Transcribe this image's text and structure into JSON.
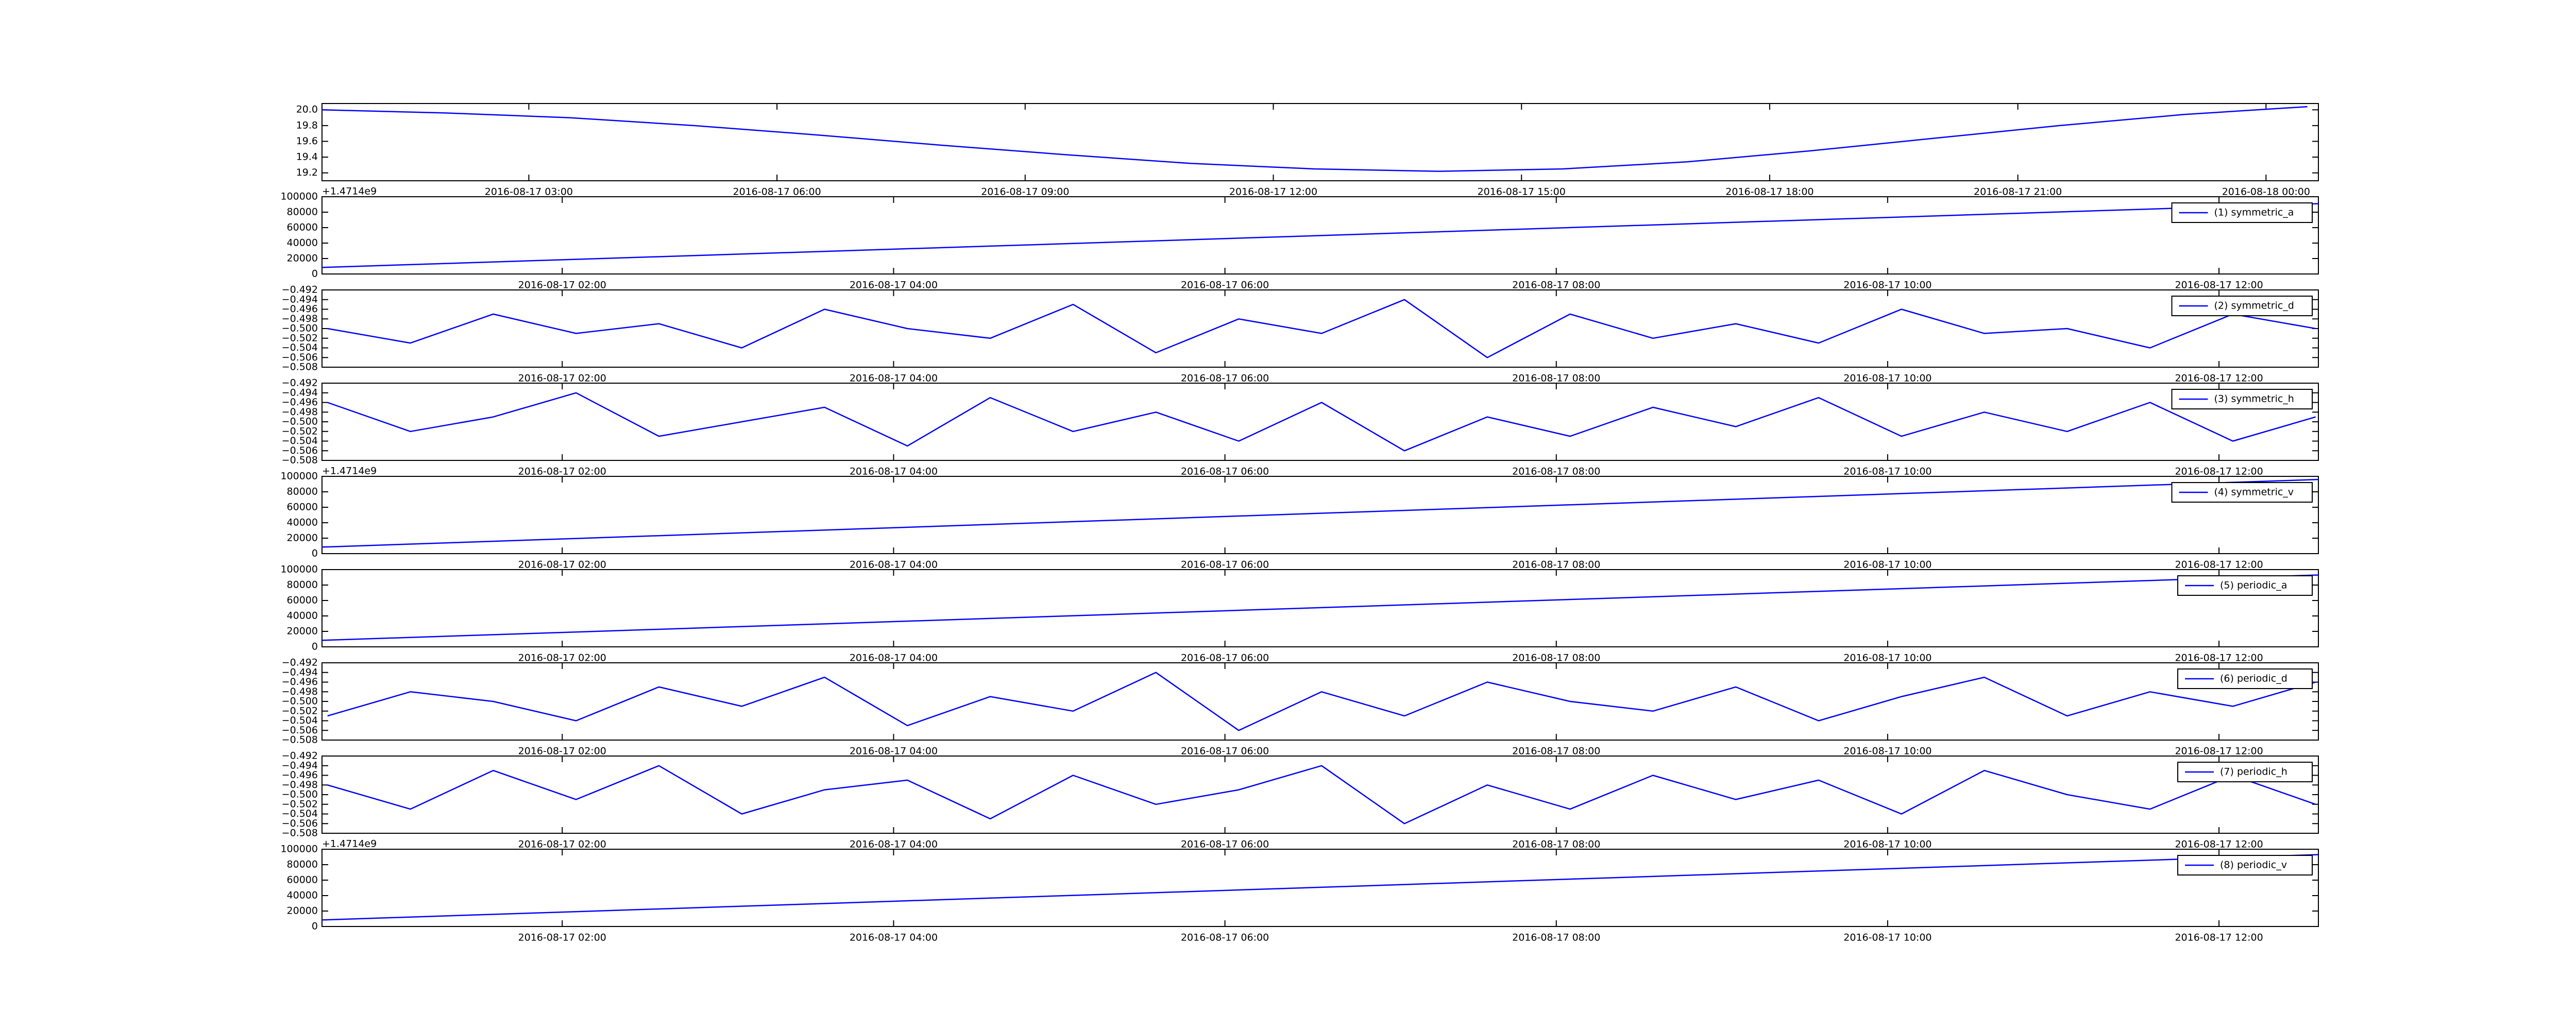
{
  "chart_data": [
    {
      "type": "line",
      "xlim": [
        "2016-08-17 00:30",
        "2016-08-18 00:38"
      ],
      "ylim": [
        19.1,
        20.08
      ],
      "xticks": [
        "2016-08-17 03:00",
        "2016-08-17 06:00",
        "2016-08-17 09:00",
        "2016-08-17 12:00",
        "2016-08-17 15:00",
        "2016-08-17 18:00",
        "2016-08-17 21:00",
        "2016-08-18 00:00"
      ],
      "yticks": [
        19.2,
        19.4,
        19.6,
        19.8,
        {
          "value": 20.0,
          "label": "20.0"
        }
      ],
      "grid": false,
      "series": [
        {
          "color": "#0000ff",
          "x": [
            "2016-08-17 00:30",
            "2016-08-17 02:00",
            "2016-08-17 03:30",
            "2016-08-17 05:00",
            "2016-08-17 06:30",
            "2016-08-17 08:00",
            "2016-08-17 09:30",
            "2016-08-17 11:00",
            "2016-08-17 12:30",
            "2016-08-17 14:00",
            "2016-08-17 15:30",
            "2016-08-17 17:00",
            "2016-08-17 18:30",
            "2016-08-17 20:00",
            "2016-08-17 21:30",
            "2016-08-17 23:00",
            "2016-08-18 00:30"
          ],
          "values": [
            20.0,
            19.96,
            19.9,
            19.8,
            19.68,
            19.55,
            19.43,
            19.32,
            19.25,
            19.22,
            19.25,
            19.34,
            19.48,
            19.64,
            19.8,
            19.94,
            20.04
          ]
        }
      ]
    },
    {
      "type": "line",
      "xlim": [
        "2016-08-17 00:33",
        "2016-08-17 12:36"
      ],
      "ylim": [
        0,
        100000
      ],
      "y_offset": "+1.4714e9",
      "legend": "upper right",
      "xticks": [
        "2016-08-17 02:00",
        "2016-08-17 04:00",
        "2016-08-17 06:00",
        "2016-08-17 08:00",
        "2016-08-17 10:00",
        "2016-08-17 12:00"
      ],
      "yticks": [
        0,
        20000,
        40000,
        60000,
        80000,
        100000
      ],
      "grid": false,
      "series": [
        {
          "name": "(1) symmetric_a",
          "color": "#0000ff",
          "x": [
            "2016-08-17 00:33",
            "2016-08-17 12:36"
          ],
          "values": [
            8500,
            91000
          ]
        }
      ]
    },
    {
      "type": "line",
      "xlim": [
        "2016-08-17 00:33",
        "2016-08-17 12:36"
      ],
      "ylim": [
        -0.508,
        -0.492
      ],
      "legend": "upper right",
      "xticks": [
        "2016-08-17 02:00",
        "2016-08-17 04:00",
        "2016-08-17 06:00",
        "2016-08-17 08:00",
        "2016-08-17 10:00",
        "2016-08-17 12:00"
      ],
      "yticks": [
        {
          "value": -0.508,
          "label": "−0.508"
        },
        {
          "value": -0.506,
          "label": "−0.506"
        },
        {
          "value": -0.504,
          "label": "−0.504"
        },
        {
          "value": -0.502,
          "label": "−0.502"
        },
        {
          "value": -0.5,
          "label": "−0.500"
        },
        {
          "value": -0.498,
          "label": "−0.498"
        },
        {
          "value": -0.496,
          "label": "−0.496"
        },
        {
          "value": -0.494,
          "label": "−0.494"
        },
        {
          "value": -0.492,
          "label": "−0.492"
        }
      ],
      "grid": false,
      "series": [
        {
          "name": "(2) symmetric_d",
          "color": "#0000ff",
          "x": [
            "2016-08-17 00:35",
            "2016-08-17 01:05",
            "2016-08-17 01:35",
            "2016-08-17 02:05",
            "2016-08-17 02:35",
            "2016-08-17 03:05",
            "2016-08-17 03:35",
            "2016-08-17 04:05",
            "2016-08-17 04:35",
            "2016-08-17 05:05",
            "2016-08-17 05:35",
            "2016-08-17 06:05",
            "2016-08-17 06:35",
            "2016-08-17 07:05",
            "2016-08-17 07:35",
            "2016-08-17 08:05",
            "2016-08-17 08:35",
            "2016-08-17 09:05",
            "2016-08-17 09:35",
            "2016-08-17 10:05",
            "2016-08-17 10:35",
            "2016-08-17 11:05",
            "2016-08-17 11:35",
            "2016-08-17 12:05",
            "2016-08-17 12:35"
          ],
          "values": [
            -0.5,
            -0.503,
            -0.497,
            -0.501,
            -0.499,
            -0.504,
            -0.496,
            -0.5,
            -0.502,
            -0.495,
            -0.505,
            -0.498,
            -0.501,
            -0.494,
            -0.506,
            -0.497,
            -0.502,
            -0.499,
            -0.503,
            -0.496,
            -0.501,
            -0.5,
            -0.504,
            -0.497,
            -0.5
          ]
        }
      ]
    },
    {
      "type": "line",
      "xlim": [
        "2016-08-17 00:33",
        "2016-08-17 12:36"
      ],
      "ylim": [
        -0.508,
        -0.492
      ],
      "legend": "upper right",
      "xticks": [
        "2016-08-17 02:00",
        "2016-08-17 04:00",
        "2016-08-17 06:00",
        "2016-08-17 08:00",
        "2016-08-17 10:00",
        "2016-08-17 12:00"
      ],
      "yticks": [
        {
          "value": -0.508,
          "label": "−0.508"
        },
        {
          "value": -0.506,
          "label": "−0.506"
        },
        {
          "value": -0.504,
          "label": "−0.504"
        },
        {
          "value": -0.502,
          "label": "−0.502"
        },
        {
          "value": -0.5,
          "label": "−0.500"
        },
        {
          "value": -0.498,
          "label": "−0.498"
        },
        {
          "value": -0.496,
          "label": "−0.496"
        },
        {
          "value": -0.494,
          "label": "−0.494"
        },
        {
          "value": -0.492,
          "label": "−0.492"
        }
      ],
      "grid": false,
      "series": [
        {
          "name": "(3) symmetric_h",
          "color": "#0000ff",
          "x": [
            "2016-08-17 00:35",
            "2016-08-17 01:05",
            "2016-08-17 01:35",
            "2016-08-17 02:05",
            "2016-08-17 02:35",
            "2016-08-17 03:05",
            "2016-08-17 03:35",
            "2016-08-17 04:05",
            "2016-08-17 04:35",
            "2016-08-17 05:05",
            "2016-08-17 05:35",
            "2016-08-17 06:05",
            "2016-08-17 06:35",
            "2016-08-17 07:05",
            "2016-08-17 07:35",
            "2016-08-17 08:05",
            "2016-08-17 08:35",
            "2016-08-17 09:05",
            "2016-08-17 09:35",
            "2016-08-17 10:05",
            "2016-08-17 10:35",
            "2016-08-17 11:05",
            "2016-08-17 11:35",
            "2016-08-17 12:05",
            "2016-08-17 12:35"
          ],
          "values": [
            -0.496,
            -0.502,
            -0.499,
            -0.494,
            -0.503,
            -0.5,
            -0.497,
            -0.505,
            -0.495,
            -0.502,
            -0.498,
            -0.504,
            -0.496,
            -0.506,
            -0.499,
            -0.503,
            -0.497,
            -0.501,
            -0.495,
            -0.503,
            -0.498,
            -0.502,
            -0.496,
            -0.504,
            -0.499
          ]
        }
      ]
    },
    {
      "type": "line",
      "xlim": [
        "2016-08-17 00:33",
        "2016-08-17 12:36"
      ],
      "ylim": [
        0,
        100000
      ],
      "y_offset": "+1.4714e9",
      "legend": "upper right",
      "xticks": [
        "2016-08-17 02:00",
        "2016-08-17 04:00",
        "2016-08-17 06:00",
        "2016-08-17 08:00",
        "2016-08-17 10:00",
        "2016-08-17 12:00"
      ],
      "yticks": [
        0,
        20000,
        40000,
        60000,
        80000,
        100000
      ],
      "grid": false,
      "series": [
        {
          "name": "(4) symmetric_v",
          "color": "#0000ff",
          "x": [
            "2016-08-17 00:33",
            "2016-08-17 12:36"
          ],
          "values": [
            8500,
            96000
          ]
        }
      ]
    },
    {
      "type": "line",
      "xlim": [
        "2016-08-17 00:33",
        "2016-08-17 12:36"
      ],
      "ylim": [
        0,
        100000
      ],
      "legend": "upper right",
      "xticks": [
        "2016-08-17 02:00",
        "2016-08-17 04:00",
        "2016-08-17 06:00",
        "2016-08-17 08:00",
        "2016-08-17 10:00",
        "2016-08-17 12:00"
      ],
      "yticks": [
        0,
        20000,
        40000,
        60000,
        80000,
        100000
      ],
      "grid": false,
      "series": [
        {
          "name": "(5) periodic_a",
          "color": "#0000ff",
          "x": [
            "2016-08-17 00:33",
            "2016-08-17 12:36"
          ],
          "values": [
            8500,
            93000
          ]
        }
      ]
    },
    {
      "type": "line",
      "xlim": [
        "2016-08-17 00:33",
        "2016-08-17 12:36"
      ],
      "ylim": [
        -0.508,
        -0.492
      ],
      "legend": "upper right",
      "xticks": [
        "2016-08-17 02:00",
        "2016-08-17 04:00",
        "2016-08-17 06:00",
        "2016-08-17 08:00",
        "2016-08-17 10:00",
        "2016-08-17 12:00"
      ],
      "yticks": [
        {
          "value": -0.508,
          "label": "−0.508"
        },
        {
          "value": -0.506,
          "label": "−0.506"
        },
        {
          "value": -0.504,
          "label": "−0.504"
        },
        {
          "value": -0.502,
          "label": "−0.502"
        },
        {
          "value": -0.5,
          "label": "−0.500"
        },
        {
          "value": -0.498,
          "label": "−0.498"
        },
        {
          "value": -0.496,
          "label": "−0.496"
        },
        {
          "value": -0.494,
          "label": "−0.494"
        },
        {
          "value": -0.492,
          "label": "−0.492"
        }
      ],
      "grid": false,
      "series": [
        {
          "name": "(6) periodic_d",
          "color": "#0000ff",
          "x": [
            "2016-08-17 00:35",
            "2016-08-17 01:05",
            "2016-08-17 01:35",
            "2016-08-17 02:05",
            "2016-08-17 02:35",
            "2016-08-17 03:05",
            "2016-08-17 03:35",
            "2016-08-17 04:05",
            "2016-08-17 04:35",
            "2016-08-17 05:05",
            "2016-08-17 05:35",
            "2016-08-17 06:05",
            "2016-08-17 06:35",
            "2016-08-17 07:05",
            "2016-08-17 07:35",
            "2016-08-17 08:05",
            "2016-08-17 08:35",
            "2016-08-17 09:05",
            "2016-08-17 09:35",
            "2016-08-17 10:05",
            "2016-08-17 10:35",
            "2016-08-17 11:05",
            "2016-08-17 11:35",
            "2016-08-17 12:05",
            "2016-08-17 12:35"
          ],
          "values": [
            -0.503,
            -0.498,
            -0.5,
            -0.504,
            -0.497,
            -0.501,
            -0.495,
            -0.505,
            -0.499,
            -0.502,
            -0.494,
            -0.506,
            -0.498,
            -0.503,
            -0.496,
            -0.5,
            -0.502,
            -0.497,
            -0.504,
            -0.499,
            -0.495,
            -0.503,
            -0.498,
            -0.501,
            -0.496
          ]
        }
      ]
    },
    {
      "type": "line",
      "xlim": [
        "2016-08-17 00:33",
        "2016-08-17 12:36"
      ],
      "ylim": [
        -0.508,
        -0.492
      ],
      "legend": "upper right",
      "xticks": [
        "2016-08-17 02:00",
        "2016-08-17 04:00",
        "2016-08-17 06:00",
        "2016-08-17 08:00",
        "2016-08-17 10:00",
        "2016-08-17 12:00"
      ],
      "yticks": [
        {
          "value": -0.508,
          "label": "−0.508"
        },
        {
          "value": -0.506,
          "label": "−0.506"
        },
        {
          "value": -0.504,
          "label": "−0.504"
        },
        {
          "value": -0.502,
          "label": "−0.502"
        },
        {
          "value": -0.5,
          "label": "−0.500"
        },
        {
          "value": -0.498,
          "label": "−0.498"
        },
        {
          "value": -0.496,
          "label": "−0.496"
        },
        {
          "value": -0.494,
          "label": "−0.494"
        },
        {
          "value": -0.492,
          "label": "−0.492"
        }
      ],
      "grid": false,
      "series": [
        {
          "name": "(7) periodic_h",
          "color": "#0000ff",
          "x": [
            "2016-08-17 00:35",
            "2016-08-17 01:05",
            "2016-08-17 01:35",
            "2016-08-17 02:05",
            "2016-08-17 02:35",
            "2016-08-17 03:05",
            "2016-08-17 03:35",
            "2016-08-17 04:05",
            "2016-08-17 04:35",
            "2016-08-17 05:05",
            "2016-08-17 05:35",
            "2016-08-17 06:05",
            "2016-08-17 06:35",
            "2016-08-17 07:05",
            "2016-08-17 07:35",
            "2016-08-17 08:05",
            "2016-08-17 08:35",
            "2016-08-17 09:05",
            "2016-08-17 09:35",
            "2016-08-17 10:05",
            "2016-08-17 10:35",
            "2016-08-17 11:05",
            "2016-08-17 11:35",
            "2016-08-17 12:05",
            "2016-08-17 12:35"
          ],
          "values": [
            -0.498,
            -0.503,
            -0.495,
            -0.501,
            -0.494,
            -0.504,
            -0.499,
            -0.497,
            -0.505,
            -0.496,
            -0.502,
            -0.499,
            -0.494,
            -0.506,
            -0.498,
            -0.503,
            -0.496,
            -0.501,
            -0.497,
            -0.504,
            -0.495,
            -0.5,
            -0.503,
            -0.496,
            -0.502
          ]
        }
      ]
    },
    {
      "type": "line",
      "xlim": [
        "2016-08-17 00:33",
        "2016-08-17 12:36"
      ],
      "ylim": [
        0,
        100000
      ],
      "y_offset": "+1.4714e9",
      "legend": "upper right",
      "xticks": [
        "2016-08-17 02:00",
        "2016-08-17 04:00",
        "2016-08-17 06:00",
        "2016-08-17 08:00",
        "2016-08-17 10:00",
        "2016-08-17 12:00"
      ],
      "yticks": [
        0,
        20000,
        40000,
        60000,
        80000,
        100000
      ],
      "grid": false,
      "series": [
        {
          "name": "(8) periodic_v",
          "color": "#0000ff",
          "x": [
            "2016-08-17 00:33",
            "2016-08-17 12:36"
          ],
          "values": [
            8500,
            93000
          ]
        }
      ]
    }
  ]
}
